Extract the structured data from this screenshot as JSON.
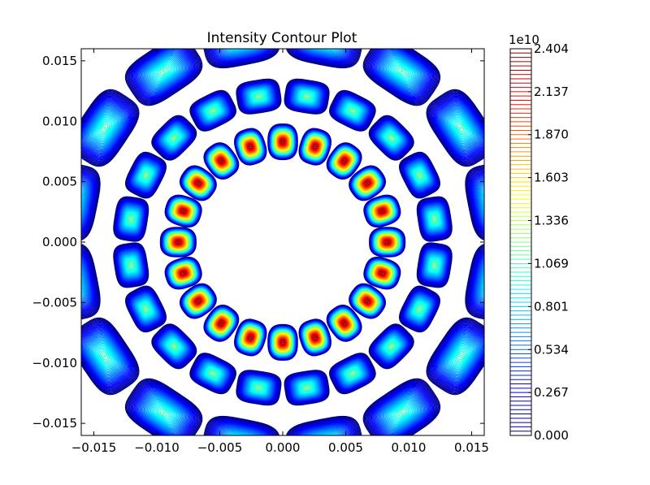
{
  "chart_data": {
    "type": "contour",
    "title": "Intensity Contour Plot",
    "xlim": [
      -0.016,
      0.016
    ],
    "ylim": [
      -0.016,
      0.016
    ],
    "x_ticks": [
      -0.015,
      -0.01,
      -0.005,
      0.0,
      0.005,
      0.01,
      0.015
    ],
    "x_tick_labels": [
      "−0.015",
      "−0.010",
      "−0.005",
      "0.000",
      "0.005",
      "0.010",
      "0.015"
    ],
    "y_ticks": [
      0.015,
      0.01,
      0.005,
      0.0,
      -0.005,
      -0.01,
      -0.015
    ],
    "y_tick_labels": [
      "0.015",
      "0.010",
      "0.005",
      "0.000",
      "−0.005",
      "−0.010",
      "−0.015"
    ],
    "colorbar": {
      "multiplier_label": "1e10",
      "min": 0.0,
      "max": 2.404,
      "tick_values": [
        0.0,
        0.267,
        0.534,
        0.801,
        1.069,
        1.336,
        1.603,
        1.87,
        2.137,
        2.404
      ],
      "tick_labels": [
        "0.000",
        "0.267",
        "0.534",
        "0.801",
        "1.069",
        "1.336",
        "1.603",
        "1.870",
        "2.137",
        "2.404"
      ],
      "colormap": "jet"
    },
    "rings": [
      {
        "radius": 0.0083,
        "count": 20,
        "peak": 2.4,
        "angle_offset_deg": 0
      },
      {
        "radius": 0.0122,
        "count": 20,
        "peak": 1.15,
        "angle_offset_deg": 9
      },
      {
        "radius": 0.017,
        "count": 16,
        "peak": 1.05,
        "angle_offset_deg": 11.25
      }
    ],
    "grid": false
  }
}
